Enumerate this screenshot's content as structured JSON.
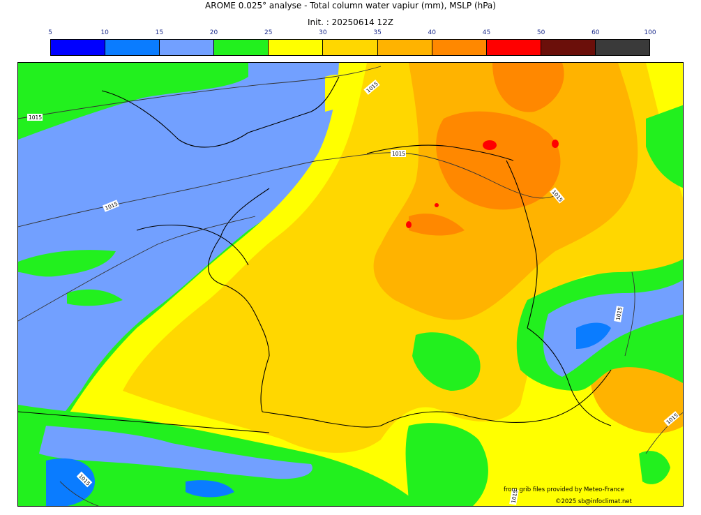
{
  "title": "AROME 0.025° analyse - Total column water vapiur (mm), MSLP (hPa)",
  "init": "Init. : 20250614 12Z",
  "colorbar": {
    "ticks": [
      "5",
      "10",
      "15",
      "20",
      "25",
      "30",
      "35",
      "40",
      "45",
      "50",
      "60",
      "100"
    ],
    "colors": [
      "#0000ff",
      "#0a7cff",
      "#72a0ff",
      "#22f01e",
      "#ffff00",
      "#ffd700",
      "#ffb300",
      "#ff8800",
      "#ff0000",
      "#6b0f0a",
      "#3a3a3a"
    ]
  },
  "isobar_label": "1015",
  "credits": {
    "line1": "from grib files provided by Meteo-France",
    "line2": "©2025 sb@infoclimat.net"
  }
}
